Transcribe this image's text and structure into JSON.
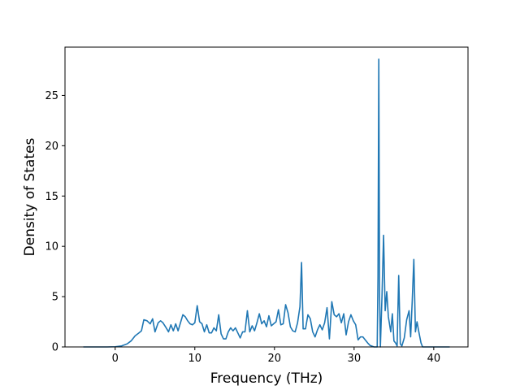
{
  "chart_data": {
    "type": "line",
    "title": "",
    "xlabel": "Frequency (THz)",
    "ylabel": "Density of States",
    "xlim": [
      -6.3,
      44.3
    ],
    "ylim": [
      0,
      29.8
    ],
    "xticks": [
      0,
      10,
      20,
      30,
      40
    ],
    "yticks": [
      0,
      5,
      10,
      15,
      20,
      25
    ],
    "grid": false,
    "line_color": "#1f77b4",
    "series": [
      {
        "name": "",
        "points": [
          [
            -4.0,
            0.0
          ],
          [
            -1.0,
            0.0
          ],
          [
            0.0,
            0.02
          ],
          [
            0.8,
            0.1
          ],
          [
            1.5,
            0.3
          ],
          [
            2.0,
            0.6
          ],
          [
            2.5,
            1.1
          ],
          [
            3.0,
            1.4
          ],
          [
            3.3,
            1.6
          ],
          [
            3.6,
            2.7
          ],
          [
            4.0,
            2.6
          ],
          [
            4.4,
            2.3
          ],
          [
            4.7,
            2.8
          ],
          [
            5.0,
            1.5
          ],
          [
            5.4,
            2.4
          ],
          [
            5.7,
            2.6
          ],
          [
            6.0,
            2.4
          ],
          [
            6.4,
            1.9
          ],
          [
            6.7,
            1.5
          ],
          [
            7.0,
            2.2
          ],
          [
            7.3,
            1.6
          ],
          [
            7.6,
            2.3
          ],
          [
            7.9,
            1.6
          ],
          [
            8.2,
            2.4
          ],
          [
            8.5,
            3.2
          ],
          [
            8.8,
            3.0
          ],
          [
            9.1,
            2.6
          ],
          [
            9.4,
            2.3
          ],
          [
            9.7,
            2.2
          ],
          [
            10.0,
            2.4
          ],
          [
            10.3,
            4.1
          ],
          [
            10.6,
            2.5
          ],
          [
            10.9,
            2.3
          ],
          [
            11.2,
            1.5
          ],
          [
            11.5,
            2.2
          ],
          [
            11.8,
            1.4
          ],
          [
            12.1,
            1.4
          ],
          [
            12.4,
            1.9
          ],
          [
            12.7,
            1.6
          ],
          [
            13.0,
            3.2
          ],
          [
            13.3,
            1.3
          ],
          [
            13.6,
            0.8
          ],
          [
            13.9,
            0.8
          ],
          [
            14.2,
            1.5
          ],
          [
            14.5,
            1.9
          ],
          [
            14.8,
            1.6
          ],
          [
            15.1,
            1.9
          ],
          [
            15.4,
            1.4
          ],
          [
            15.7,
            0.9
          ],
          [
            16.0,
            1.5
          ],
          [
            16.3,
            1.5
          ],
          [
            16.6,
            3.6
          ],
          [
            16.9,
            1.5
          ],
          [
            17.2,
            2.1
          ],
          [
            17.5,
            1.6
          ],
          [
            17.8,
            2.4
          ],
          [
            18.1,
            3.3
          ],
          [
            18.4,
            2.3
          ],
          [
            18.7,
            2.6
          ],
          [
            19.0,
            2.0
          ],
          [
            19.3,
            3.1
          ],
          [
            19.6,
            2.1
          ],
          [
            19.9,
            2.3
          ],
          [
            20.2,
            2.5
          ],
          [
            20.5,
            3.7
          ],
          [
            20.8,
            2.2
          ],
          [
            21.1,
            2.3
          ],
          [
            21.4,
            4.2
          ],
          [
            21.7,
            3.4
          ],
          [
            22.0,
            2.0
          ],
          [
            22.3,
            1.6
          ],
          [
            22.6,
            1.5
          ],
          [
            22.9,
            2.4
          ],
          [
            23.2,
            4.0
          ],
          [
            23.4,
            8.4
          ],
          [
            23.6,
            1.8
          ],
          [
            23.9,
            1.8
          ],
          [
            24.2,
            3.2
          ],
          [
            24.5,
            2.8
          ],
          [
            24.8,
            1.5
          ],
          [
            25.1,
            1.0
          ],
          [
            25.4,
            1.7
          ],
          [
            25.7,
            2.2
          ],
          [
            26.0,
            1.7
          ],
          [
            26.3,
            2.4
          ],
          [
            26.6,
            3.9
          ],
          [
            26.9,
            0.8
          ],
          [
            27.2,
            4.5
          ],
          [
            27.5,
            3.2
          ],
          [
            27.8,
            3.0
          ],
          [
            28.1,
            3.3
          ],
          [
            28.4,
            2.4
          ],
          [
            28.7,
            3.3
          ],
          [
            29.0,
            1.2
          ],
          [
            29.3,
            2.5
          ],
          [
            29.6,
            3.2
          ],
          [
            29.9,
            2.6
          ],
          [
            30.2,
            2.2
          ],
          [
            30.5,
            0.7
          ],
          [
            30.8,
            1.0
          ],
          [
            31.1,
            1.0
          ],
          [
            31.4,
            0.7
          ],
          [
            31.7,
            0.4
          ],
          [
            32.0,
            0.15
          ],
          [
            32.5,
            0.0
          ],
          [
            32.9,
            0.0
          ],
          [
            33.0,
            7.0
          ],
          [
            33.1,
            28.6
          ],
          [
            33.2,
            5.0
          ],
          [
            33.3,
            0.0
          ],
          [
            33.5,
            5.0
          ],
          [
            33.7,
            11.1
          ],
          [
            33.9,
            3.6
          ],
          [
            34.1,
            5.5
          ],
          [
            34.3,
            3.0
          ],
          [
            34.6,
            1.5
          ],
          [
            34.8,
            3.3
          ],
          [
            35.0,
            0.6
          ],
          [
            35.2,
            0.4
          ],
          [
            35.4,
            0.1
          ],
          [
            35.6,
            7.1
          ],
          [
            35.8,
            0.3
          ],
          [
            36.0,
            0.1
          ],
          [
            36.3,
            0.9
          ],
          [
            36.6,
            2.7
          ],
          [
            36.9,
            3.6
          ],
          [
            37.1,
            1.0
          ],
          [
            37.3,
            4.6
          ],
          [
            37.5,
            8.7
          ],
          [
            37.7,
            1.5
          ],
          [
            37.9,
            2.5
          ],
          [
            38.1,
            1.6
          ],
          [
            38.4,
            0.4
          ],
          [
            38.6,
            0.0
          ],
          [
            42.0,
            0.0
          ]
        ]
      }
    ]
  }
}
